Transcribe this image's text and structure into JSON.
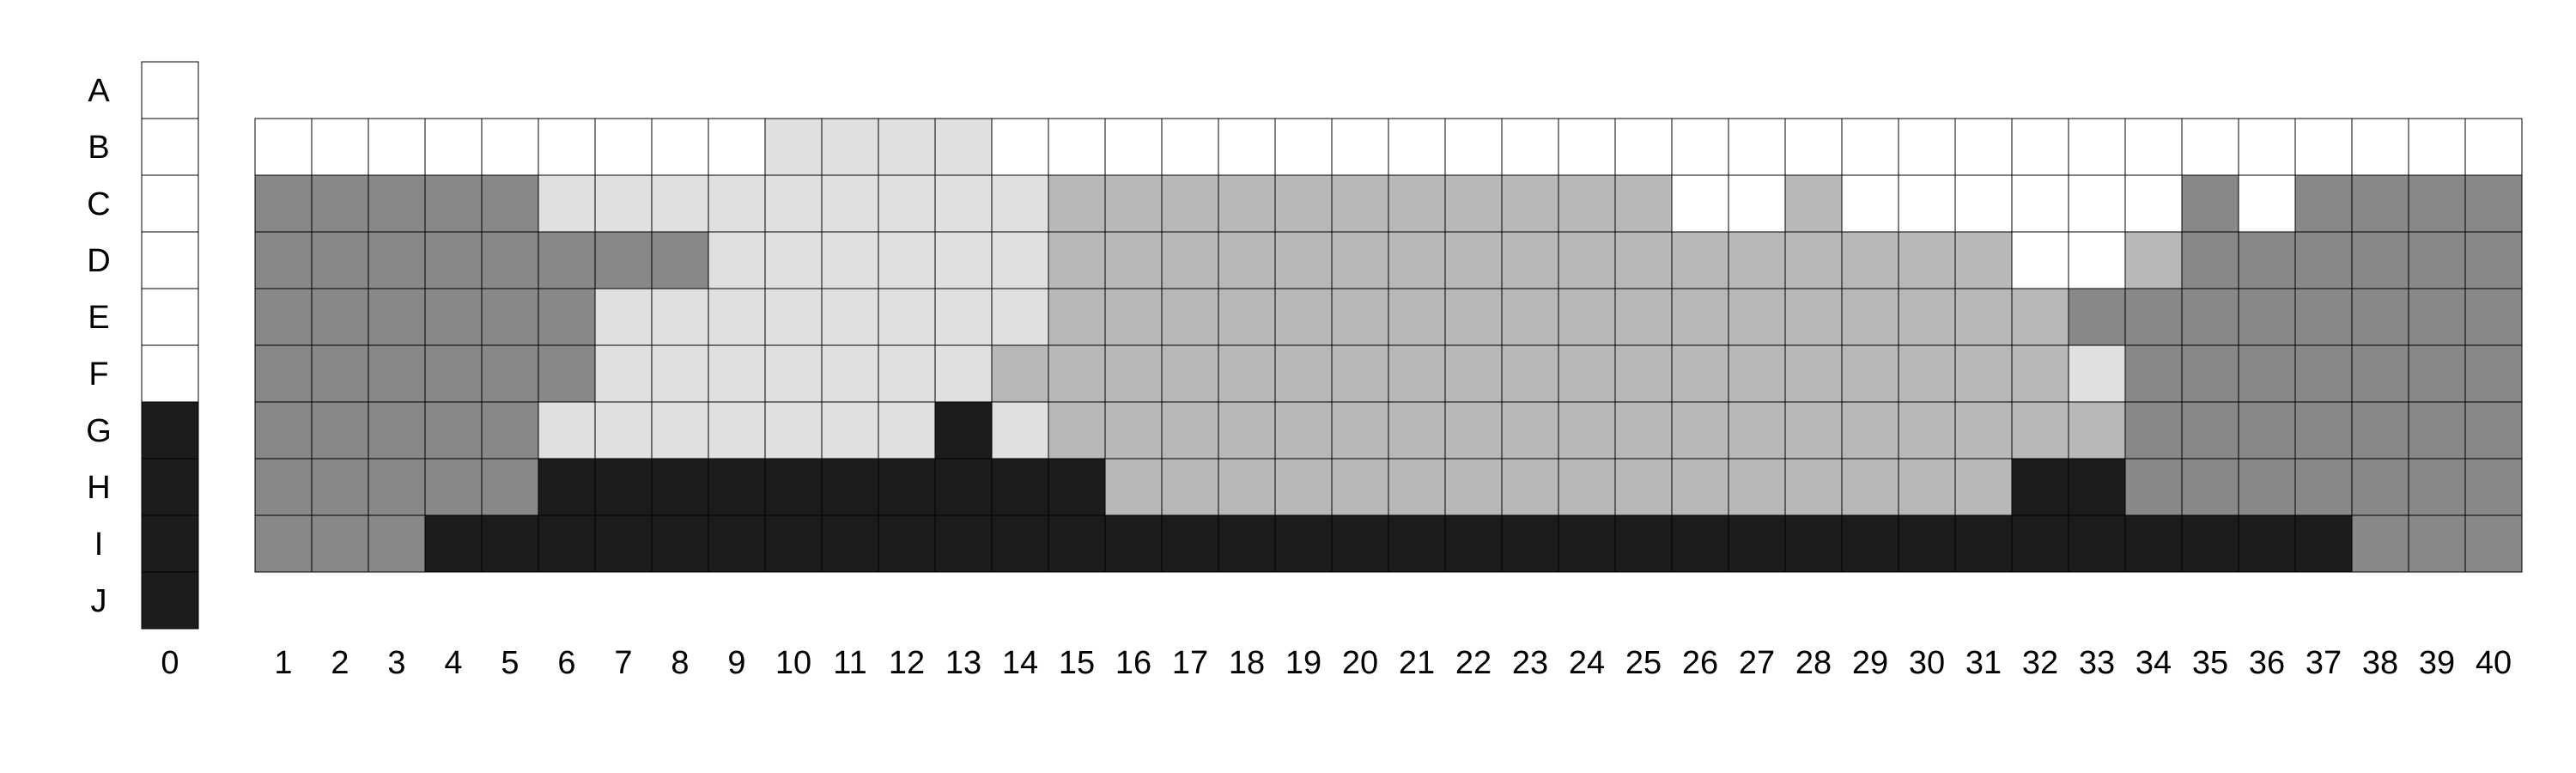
{
  "palette": {
    "white": "#ffffff",
    "light": "#e0e0e0",
    "medium": "#b8b8b8",
    "dark": "#888888",
    "black": "#1c1c1c",
    "grid_line": "#000000"
  },
  "row_labels": [
    "A",
    "B",
    "C",
    "D",
    "E",
    "F",
    "G",
    "H",
    "I",
    "J"
  ],
  "reference_column": {
    "label": "0",
    "cells": [
      "white",
      "white",
      "white",
      "white",
      "white",
      "white",
      "black",
      "black",
      "black",
      "black"
    ]
  },
  "column_labels": [
    "1",
    "2",
    "3",
    "4",
    "5",
    "6",
    "7",
    "8",
    "9",
    "10",
    "11",
    "12",
    "13",
    "14",
    "15",
    "16",
    "17",
    "18",
    "19",
    "20",
    "21",
    "22",
    "23",
    "24",
    "25",
    "26",
    "27",
    "28",
    "29",
    "30",
    "31",
    "32",
    "33",
    "34",
    "35",
    "36",
    "37",
    "38",
    "39",
    "40"
  ],
  "main_grid": {
    "row_labels": [
      "B",
      "C",
      "D",
      "E",
      "F",
      "G",
      "H",
      "I"
    ],
    "legend": {
      "W": "white",
      "L": "light",
      "M": "medium",
      "D": "dark",
      "K": "black"
    },
    "rows": [
      "WWWWWWWWWLLLLWWWWWWWWWWWWWWWWWWWWWWWWWWW",
      "DDDDDLLLLLLLLLMMMMMMMMMMMWWMWWWWWWDWDDDD",
      "DDDDDDDDLLLLLLMMMMMMMMMMMMMMMMMWWMDDDDDD",
      "DDDDDDLLLLLLLLMMMMMMMMMMMMMMMMMMDDDDDDDD",
      "DDDDDDLLLLLLLMMMMMMMMMMMMMMMMMMMLDDDDDDD",
      "DDDDDLLLLLLLKLMMMMMMMMMMMMMMMMMMMDDDDDDD",
      "DDDDDKKKKKKKKKKMMMMMMMMMMMMMMMMKKDDDDDDD",
      "DDDKKKKKKKKKKKKKKKKKKKKKKKKKKKKKKKKKKDDD"
    ]
  }
}
